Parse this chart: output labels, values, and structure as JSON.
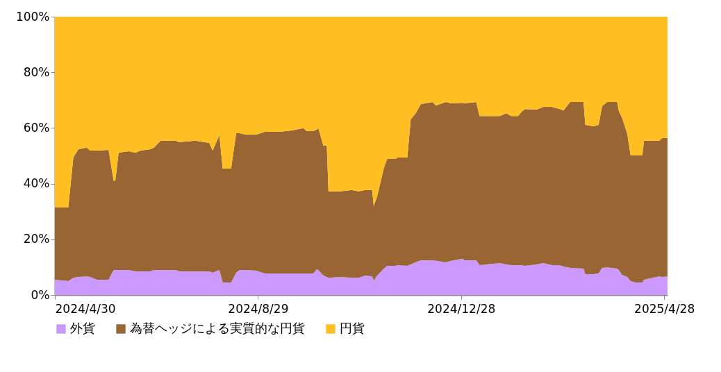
{
  "chart_data": {
    "type": "area",
    "stacked": true,
    "grid": false,
    "legend": "bottom",
    "x": [
      "2024-04-30",
      "2024-05-08",
      "2024-05-11",
      "2024-05-14",
      "2024-05-19",
      "2024-05-21",
      "2024-05-25",
      "2024-06-01",
      "2024-06-04",
      "2024-06-05",
      "2024-06-07",
      "2024-06-13",
      "2024-06-17",
      "2024-06-20",
      "2024-06-26",
      "2024-06-28",
      "2024-07-02",
      "2024-07-11",
      "2024-07-13",
      "2024-07-23",
      "2024-07-31",
      "2024-08-02",
      "2024-08-06",
      "2024-08-08",
      "2024-08-13",
      "2024-08-16",
      "2024-08-18",
      "2024-08-22",
      "2024-08-28",
      "2024-09-02",
      "2024-09-11",
      "2024-09-18",
      "2024-09-25",
      "2024-09-27",
      "2024-10-01",
      "2024-10-03",
      "2024-10-04",
      "2024-10-07",
      "2024-10-09",
      "2024-10-10",
      "2024-10-17",
      "2024-10-24",
      "2024-10-28",
      "2024-11-01",
      "2024-11-05",
      "2024-11-06",
      "2024-11-08",
      "2024-11-12",
      "2024-11-14",
      "2024-11-19",
      "2024-11-20",
      "2024-11-26",
      "2024-11-28",
      "2024-12-01",
      "2024-12-04",
      "2024-12-11",
      "2024-12-13",
      "2024-12-19",
      "2024-12-22",
      "2024-12-29",
      "2024-12-30",
      "2025-01-06",
      "2025-01-08",
      "2025-01-20",
      "2025-01-24",
      "2025-01-27",
      "2025-01-31",
      "2025-02-02",
      "2025-02-04",
      "2025-02-11",
      "2025-02-15",
      "2025-02-20",
      "2025-02-25",
      "2025-02-27",
      "2025-03-03",
      "2025-03-11",
      "2025-03-12",
      "2025-03-17",
      "2025-03-20",
      "2025-03-22",
      "2025-03-25",
      "2025-03-31",
      "2025-04-01",
      "2025-04-03",
      "2025-04-06",
      "2025-04-08",
      "2025-04-11",
      "2025-04-15",
      "2025-04-16",
      "2025-04-21",
      "2025-04-25",
      "2025-04-27",
      "2025-04-30"
    ],
    "series": [
      {
        "name": "外貨",
        "color": "#cc99ff",
        "values": [
          5.5,
          5.0,
          6.2,
          6.5,
          6.7,
          6.5,
          5.5,
          5.5,
          9.0,
          9.0,
          9.0,
          9.0,
          8.5,
          8.5,
          8.5,
          9.0,
          9.0,
          9.0,
          8.5,
          8.5,
          8.5,
          8.0,
          9.0,
          4.5,
          4.5,
          8.0,
          9.0,
          9.0,
          8.7,
          7.7,
          7.7,
          7.7,
          7.7,
          7.7,
          7.7,
          9.2,
          9.0,
          7.0,
          6.5,
          6.2,
          6.5,
          6.2,
          6.2,
          7.0,
          6.7,
          5.2,
          7.0,
          9.5,
          10.5,
          10.5,
          10.7,
          10.5,
          11.0,
          11.8,
          12.5,
          12.5,
          12.3,
          11.7,
          12.3,
          13.0,
          12.5,
          12.5,
          10.7,
          11.5,
          11.0,
          10.7,
          10.7,
          10.7,
          10.5,
          11.0,
          11.5,
          10.7,
          10.6,
          10.2,
          9.7,
          9.5,
          7.5,
          7.5,
          7.8,
          9.7,
          9.9,
          9.5,
          9.0,
          7.2,
          6.5,
          5.0,
          4.5,
          4.5,
          5.5,
          6.2,
          6.7,
          6.5,
          6.7
        ]
      },
      {
        "name": "為替ヘッジによる実質的な円貨",
        "color": "#996633",
        "values": [
          25.9,
          26.4,
          43.2,
          45.9,
          46.2,
          45.4,
          46.4,
          46.6,
          32.1,
          32.1,
          42.1,
          42.6,
          42.6,
          43.4,
          43.9,
          43.9,
          46.4,
          46.4,
          46.4,
          46.9,
          46.1,
          43.9,
          48.4,
          40.9,
          40.9,
          50.1,
          49.1,
          48.6,
          48.9,
          50.9,
          50.9,
          51.4,
          52.2,
          51.2,
          51.2,
          50.2,
          50.9,
          46.6,
          47.1,
          31.0,
          30.7,
          31.5,
          31.0,
          30.7,
          31.0,
          26.7,
          28.4,
          36.1,
          38.4,
          38.4,
          38.7,
          38.9,
          52.1,
          53.5,
          56.1,
          56.8,
          55.8,
          57.6,
          56.5,
          56.0,
          56.3,
          56.8,
          53.6,
          52.8,
          54.3,
          53.6,
          53.6,
          55.1,
          56.3,
          55.6,
          56.1,
          56.9,
          56.2,
          56.1,
          59.6,
          59.8,
          53.6,
          53.1,
          53.3,
          58.1,
          59.4,
          59.8,
          57.1,
          56.4,
          51.4,
          45.1,
          45.6,
          45.6,
          49.9,
          49.2,
          48.7,
          49.9,
          49.7
        ]
      },
      {
        "name": "円貨",
        "color": "#ffbf22",
        "values": [
          68.6,
          68.6,
          50.6,
          47.6,
          47.1,
          48.1,
          48.1,
          47.9,
          58.9,
          58.9,
          48.9,
          48.4,
          48.9,
          48.1,
          47.6,
          47.1,
          44.6,
          44.6,
          45.1,
          44.6,
          45.4,
          48.1,
          42.6,
          54.6,
          54.6,
          41.9,
          41.9,
          42.4,
          42.4,
          41.4,
          41.4,
          40.9,
          40.1,
          41.1,
          41.1,
          40.6,
          40.1,
          46.4,
          46.4,
          62.8,
          62.8,
          62.3,
          62.8,
          62.3,
          62.3,
          68.1,
          64.6,
          54.4,
          51.1,
          51.1,
          50.6,
          50.6,
          36.9,
          34.7,
          31.4,
          30.7,
          31.9,
          30.7,
          31.2,
          31.0,
          31.2,
          30.7,
          35.7,
          35.7,
          34.7,
          35.7,
          35.7,
          34.2,
          33.2,
          33.4,
          32.4,
          32.4,
          33.2,
          33.7,
          30.7,
          30.7,
          38.9,
          39.4,
          38.9,
          32.2,
          30.7,
          30.7,
          33.9,
          36.4,
          42.1,
          49.9,
          49.9,
          49.9,
          44.6,
          44.6,
          44.6,
          43.6,
          43.6
        ]
      }
    ],
    "xlim": [
      "2024-04-30",
      "2025-04-30"
    ],
    "xticks": [
      {
        "value": "2024-04-30",
        "label": "2024/4/30"
      },
      {
        "value": "2024-08-29",
        "label": "2024/8/29"
      },
      {
        "value": "2024-12-28",
        "label": "2024/12/28"
      },
      {
        "value": "2025-04-28",
        "label": "2025/4/28"
      }
    ],
    "ylim": [
      0,
      100
    ],
    "yticks": [
      {
        "value": 0,
        "label": "0%"
      },
      {
        "value": 20,
        "label": "20%"
      },
      {
        "value": 40,
        "label": "40%"
      },
      {
        "value": 60,
        "label": "60%"
      },
      {
        "value": 80,
        "label": "80%"
      },
      {
        "value": 100,
        "label": "100%"
      }
    ]
  }
}
